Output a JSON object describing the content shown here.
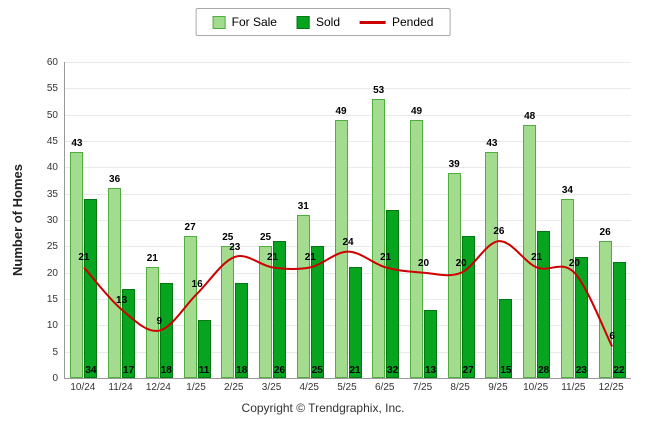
{
  "ylabel": "Number of Homes",
  "footer": "Copyright © Trendgraphix, Inc.",
  "colors": {
    "for_sale_fill": "#A3DC8F",
    "for_sale_border": "#4FAE3E",
    "sold_fill": "#07A41F",
    "sold_border": "#047714",
    "pended_line": "#CC0000",
    "axis": "#999999",
    "grid": "#E9E9E9"
  },
  "chart_data": {
    "type": "bar",
    "title": "",
    "xlabel": "",
    "ylabel": "Number of Homes",
    "categories": [
      "10/24",
      "11/24",
      "12/24",
      "1/25",
      "2/25",
      "3/25",
      "4/25",
      "5/25",
      "6/25",
      "7/25",
      "8/25",
      "9/25",
      "10/25",
      "11/25",
      "12/25"
    ],
    "series": [
      {
        "name": "For Sale",
        "kind": "bar",
        "color": "#A3DC8F",
        "border": "#4FAE3E",
        "label_position": "top",
        "values": [
          43,
          36,
          21,
          27,
          25,
          25,
          31,
          49,
          53,
          49,
          39,
          43,
          48,
          34,
          26
        ]
      },
      {
        "name": "Sold",
        "kind": "bar",
        "color": "#07A41F",
        "border": "#047714",
        "label_position": "bottom",
        "values": [
          34,
          17,
          18,
          11,
          18,
          26,
          25,
          21,
          32,
          13,
          27,
          15,
          28,
          23,
          22
        ]
      },
      {
        "name": "Pended",
        "kind": "line",
        "color": "#CC0000",
        "label_position": "point",
        "values": [
          21,
          13,
          9,
          16,
          23,
          21,
          21,
          24,
          21,
          20,
          20,
          26,
          21,
          20,
          6
        ]
      }
    ],
    "ylim": [
      0,
      60
    ],
    "ytick_step": 5,
    "grid": true,
    "legend_position": "top"
  }
}
